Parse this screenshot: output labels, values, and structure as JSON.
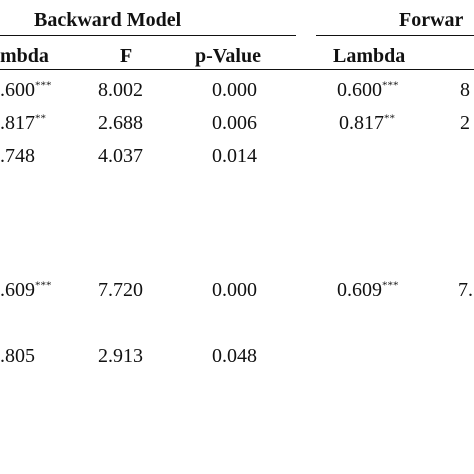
{
  "groups": {
    "backward": "Backward Model",
    "forward": "Forwar"
  },
  "columns": {
    "lambda_b": "mbda",
    "f": "F",
    "pvalue": "p-Value",
    "lambda_f": "Lambda"
  },
  "rows": [
    {
      "lambda_b": ".600",
      "lambda_b_sig": "***",
      "f_b": "8.002",
      "p_b": "0.000",
      "lambda_f": "0.600",
      "lambda_f_sig": "***",
      "f_f": "8"
    },
    {
      "lambda_b": ".817",
      "lambda_b_sig": "**",
      "f_b": "2.688",
      "p_b": "0.006",
      "lambda_f": "0.817",
      "lambda_f_sig": "**",
      "f_f": "2"
    },
    {
      "lambda_b": ".748",
      "lambda_b_sig": "",
      "f_b": "4.037",
      "p_b": "0.014",
      "lambda_f": "",
      "lambda_f_sig": "",
      "f_f": ""
    },
    {
      "lambda_b": ".609",
      "lambda_b_sig": "***",
      "f_b": "7.720",
      "p_b": "0.000",
      "lambda_f": "0.609",
      "lambda_f_sig": "***",
      "f_f": "7."
    },
    {
      "lambda_b": ".805",
      "lambda_b_sig": "",
      "f_b": "2.913",
      "p_b": "0.048",
      "lambda_f": "",
      "lambda_f_sig": "",
      "f_f": ""
    }
  ]
}
